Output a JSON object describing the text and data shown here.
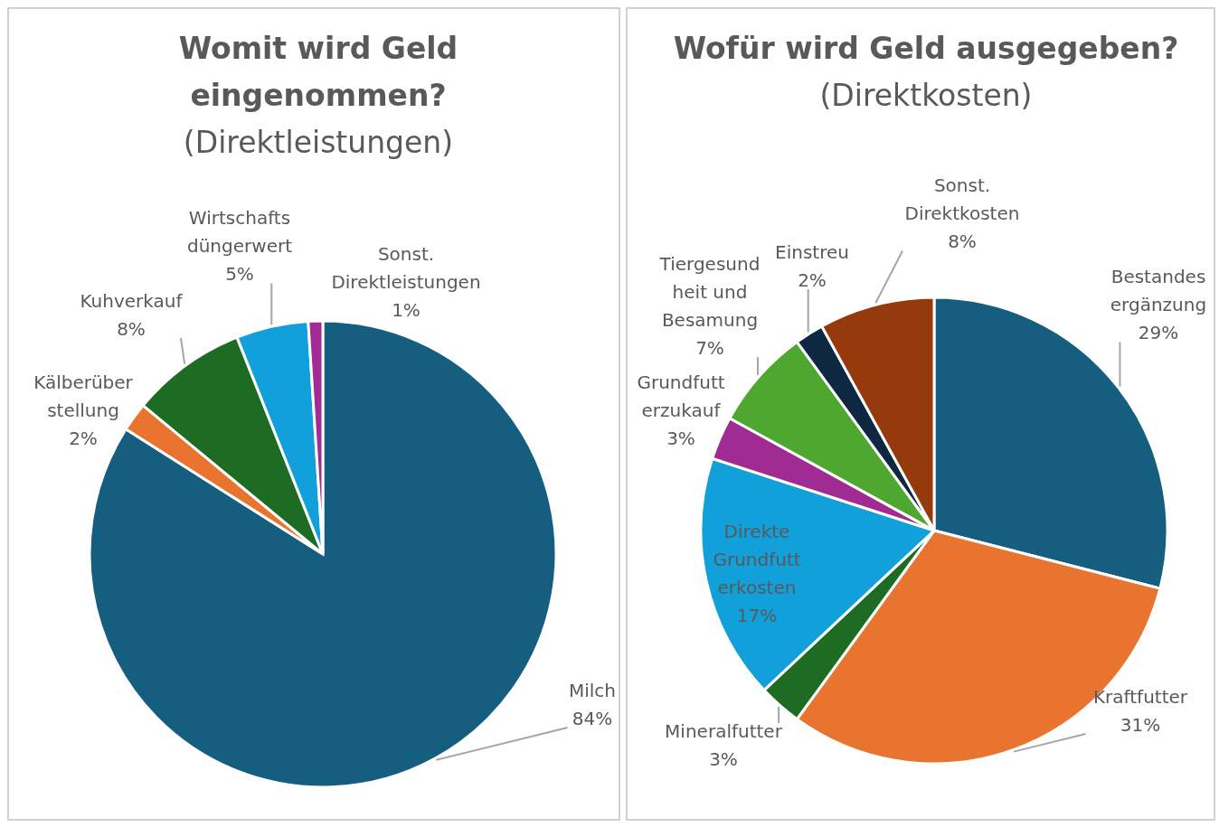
{
  "chart_data": [
    {
      "type": "pie",
      "title": "Womit wird Geld eingenommen?",
      "subtitle": "(Direktleistungen)",
      "categories": [
        "Milch",
        "Kälberüber\nstellung",
        "Kuhverkauf",
        "Wirtschafts\ndüngerwert",
        "Sonst.\nDirektleistungen"
      ],
      "values": [
        84,
        2,
        8,
        5,
        1
      ],
      "value_labels": [
        "84%",
        "2%",
        "8%",
        "5%",
        "1%"
      ],
      "colors": [
        "#165e80",
        "#e8742f",
        "#1e6b23",
        "#11a0d9",
        "#a02b93"
      ]
    },
    {
      "type": "pie",
      "title": "Wofür wird Geld ausgegeben?",
      "subtitle": "(Direktkosten)",
      "categories": [
        "Bestandes\nergänzung",
        "Kraftfutter",
        "Mineralfutter",
        "Direkte\nGrundfutt\nerkosten",
        "Grundfutt\nerzukauf",
        "Tiergesund\nheit und\nBesamung",
        "Einstreu",
        "Sonst.\nDirektkosten"
      ],
      "values": [
        29,
        31,
        3,
        17,
        3,
        7,
        2,
        8
      ],
      "value_labels": [
        "29%",
        "31%",
        "3%",
        "17%",
        "3%",
        "7%",
        "2%",
        "8%"
      ],
      "colors": [
        "#165e80",
        "#e8742f",
        "#1e6b23",
        "#11a0d9",
        "#a02b93",
        "#4ea72e",
        "#0e2841",
        "#953a0d"
      ]
    }
  ]
}
